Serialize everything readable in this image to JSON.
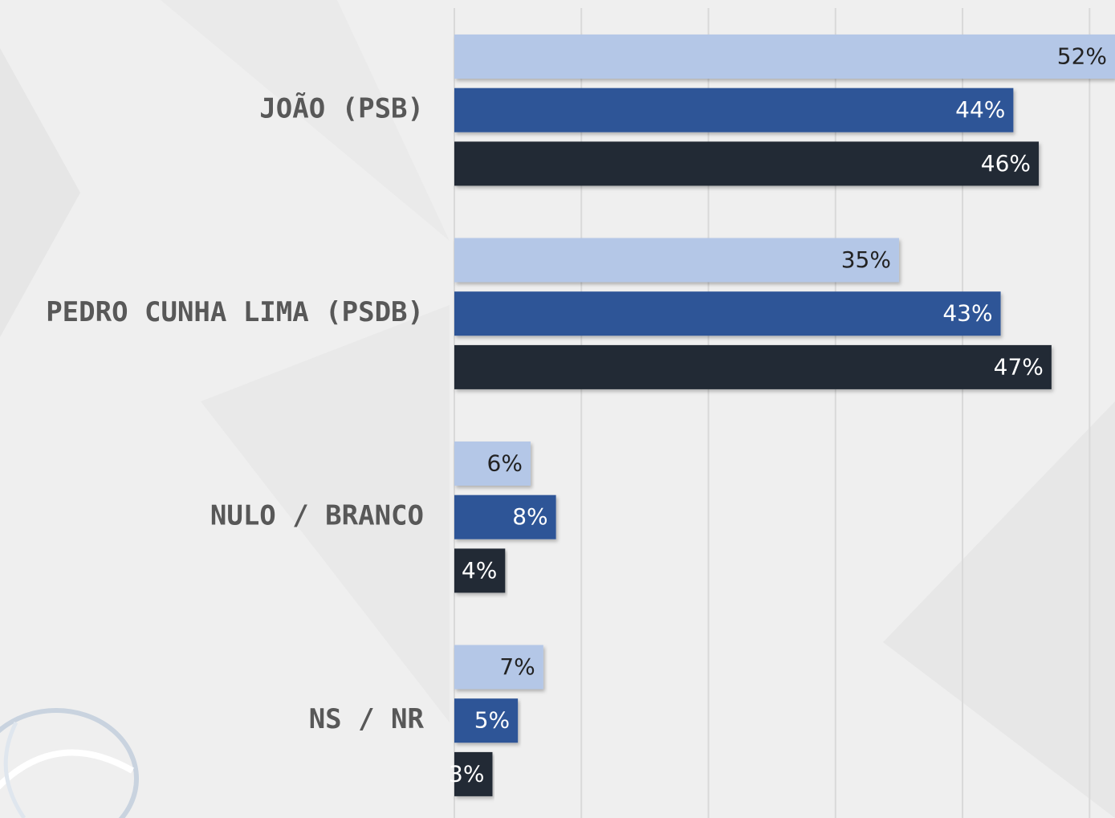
{
  "chart_data": {
    "type": "bar",
    "orientation": "horizontal",
    "categories": [
      "JOÃO (PSB)",
      "PEDRO CUNHA LIMA (PSDB)",
      "NULO / BRANCO",
      "NS / NR"
    ],
    "series": [
      {
        "color": "#b4c7e7",
        "values": [
          52,
          35,
          6,
          7
        ],
        "value_labels": [
          "52%",
          "35%",
          "6%",
          "7%"
        ]
      },
      {
        "color": "#2f5597",
        "values": [
          44,
          43,
          8,
          5
        ],
        "value_labels": [
          "44%",
          "43%",
          "8%",
          "5%"
        ]
      },
      {
        "color": "#222a35",
        "values": [
          46,
          47,
          4,
          3
        ],
        "value_labels": [
          "46%",
          "47%",
          "4%",
          "3%"
        ]
      }
    ],
    "xlim": [
      0,
      52
    ],
    "xticks": [
      0,
      10,
      20,
      30,
      40,
      50
    ],
    "grid": true
  }
}
